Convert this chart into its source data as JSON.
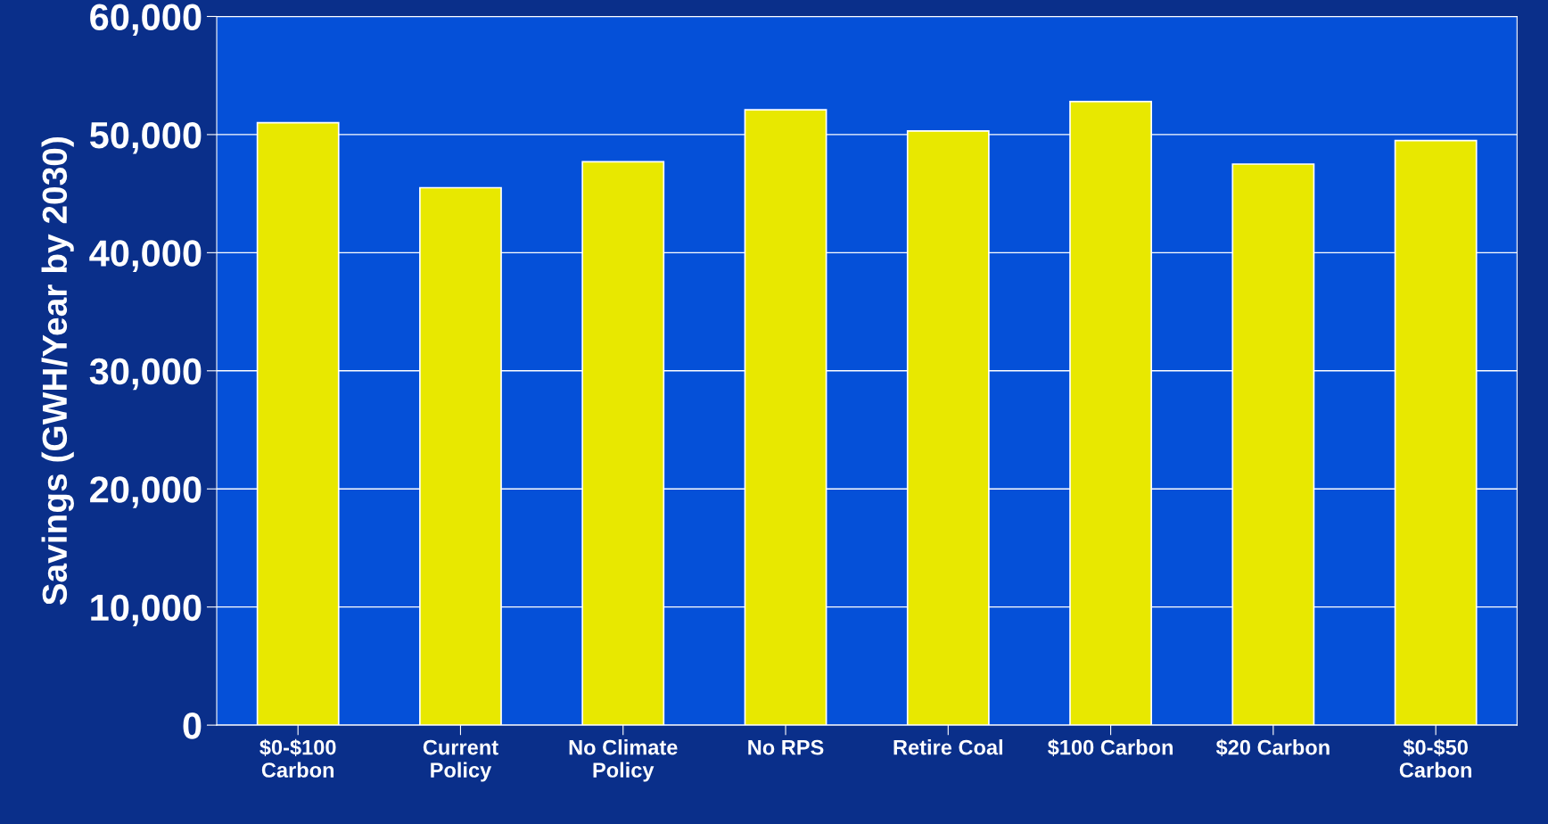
{
  "chart_data": {
    "type": "bar",
    "ylabel": "Savings (GWH/Year by 2030)",
    "categories": [
      "$0-$100\nCarbon",
      "Current\nPolicy",
      "No Climate\nPolicy",
      "No RPS",
      "Retire Coal",
      "$100 Carbon",
      "$20 Carbon",
      "$0-$50\nCarbon"
    ],
    "values": [
      51000,
      45500,
      47700,
      52100,
      50300,
      52800,
      47500,
      49500
    ],
    "color": "#e8e800",
    "ylim": [
      0,
      60000
    ],
    "yticks": [
      {
        "value": 0,
        "label": "0"
      },
      {
        "value": 10000,
        "label": "10,000"
      },
      {
        "value": 20000,
        "label": "20,000"
      },
      {
        "value": 30000,
        "label": "30,000"
      },
      {
        "value": 40000,
        "label": "40,000"
      },
      {
        "value": 50000,
        "label": "50,000"
      },
      {
        "value": 60000,
        "label": "60,000"
      }
    ],
    "grid": "y"
  }
}
